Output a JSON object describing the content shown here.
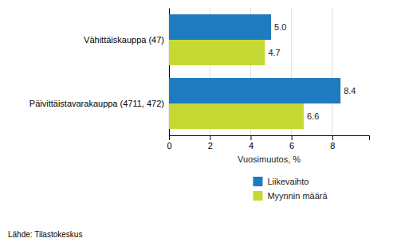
{
  "chart_data": {
    "type": "bar",
    "orientation": "horizontal",
    "categories": [
      "Päivittäistavarakauppa (4711, 472)",
      "Vähittäiskauppa (47)"
    ],
    "series": [
      {
        "name": "Liikevaihto",
        "color": "#1F7BBF",
        "values": [
          8.4,
          5.0
        ],
        "value_labels": [
          "8.4",
          "5.0"
        ]
      },
      {
        "name": "Myynnin määrä",
        "color": "#C5D935",
        "values": [
          6.6,
          4.7
        ],
        "value_labels": [
          "6.6",
          "4.7"
        ]
      }
    ],
    "x_label": "Vuosimuutos, %",
    "xlim": [
      0,
      9.8
    ],
    "xticks": [
      0,
      2,
      4,
      6,
      8
    ],
    "grid": true,
    "data_labels": true,
    "legend": "bottom",
    "source": "Lähde: Tilastokeskus"
  }
}
